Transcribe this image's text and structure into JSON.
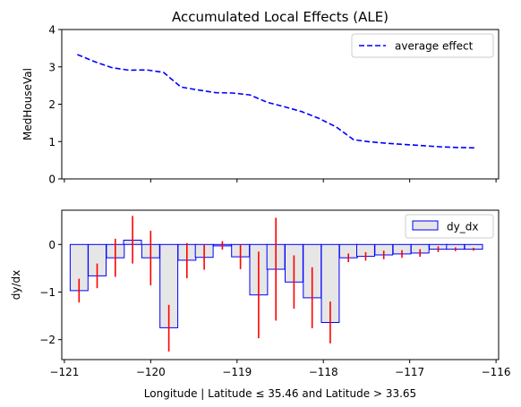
{
  "chart_data": [
    {
      "type": "line",
      "title": "Accumulated Local Effects (ALE)",
      "xlabel": "",
      "ylabel": "MedHouseVal",
      "xlim": [
        -121.03,
        -115.97
      ],
      "ylim": [
        0,
        4
      ],
      "yticks": [
        0,
        1,
        2,
        3,
        4
      ],
      "legend": {
        "position": "top-right",
        "entries": [
          "average effect"
        ]
      },
      "series": [
        {
          "name": "average effect",
          "color": "#0000ff",
          "linestyle": "dashed",
          "x": [
            -120.85,
            -120.65,
            -120.45,
            -120.25,
            -120.05,
            -119.85,
            -119.65,
            -119.45,
            -119.25,
            -119.05,
            -118.85,
            -118.65,
            -118.45,
            -118.25,
            -118.05,
            -117.85,
            -117.65,
            -117.45,
            -117.25,
            -117.05,
            -116.85,
            -116.65,
            -116.45,
            -116.25
          ],
          "y": [
            3.33,
            3.14,
            2.98,
            2.91,
            2.92,
            2.85,
            2.46,
            2.38,
            2.31,
            2.3,
            2.25,
            2.05,
            1.93,
            1.8,
            1.62,
            1.39,
            1.05,
            0.99,
            0.95,
            0.92,
            0.89,
            0.86,
            0.84,
            0.83
          ]
        }
      ]
    },
    {
      "type": "bar",
      "title": "",
      "xlabel": "Longitude | Latitude ≤ 35.46 and Latitude > 33.65",
      "ylabel": "dy/dx",
      "xlim": [
        -121.03,
        -115.97
      ],
      "ylim": [
        -2.42,
        0.72
      ],
      "yticks": [
        0,
        -1,
        -2
      ],
      "xticks": [
        -121,
        -120,
        -119,
        -118,
        -117,
        -116
      ],
      "xtick_labels": [
        "−121",
        "−120",
        "−119",
        "−118",
        "−117",
        "−116"
      ],
      "ytick_labels": [
        "0",
        "−1",
        "−2"
      ],
      "legend": {
        "position": "top-right",
        "entries": [
          "dy_dx"
        ]
      },
      "bar_fill": "#e6e6e6",
      "bar_edge": "#0000ff",
      "error_color": "#ff0000",
      "series": [
        {
          "name": "dy_dx",
          "x": [
            -120.83,
            -120.62,
            -120.41,
            -120.21,
            -120.0,
            -119.79,
            -119.58,
            -119.38,
            -119.17,
            -118.96,
            -118.75,
            -118.55,
            -118.34,
            -118.13,
            -117.92,
            -117.71,
            -117.51,
            -117.3,
            -117.09,
            -116.88,
            -116.67,
            -116.47,
            -116.26
          ],
          "values": [
            -0.97,
            -0.66,
            -0.28,
            0.09,
            -0.28,
            -1.75,
            -0.33,
            -0.27,
            -0.03,
            -0.26,
            -1.06,
            -0.52,
            -0.79,
            -1.12,
            -1.64,
            -0.28,
            -0.25,
            -0.22,
            -0.2,
            -0.18,
            -0.1,
            -0.1,
            -0.1
          ],
          "err_low": [
            -1.22,
            -0.92,
            -0.68,
            -0.4,
            -0.86,
            -2.25,
            -0.71,
            -0.53,
            -0.11,
            -0.52,
            -1.97,
            -1.6,
            -1.35,
            -1.76,
            -2.08,
            -0.37,
            -0.34,
            -0.31,
            -0.28,
            -0.26,
            -0.16,
            -0.14,
            -0.13
          ],
          "err_high": [
            -0.72,
            -0.4,
            0.12,
            0.6,
            0.29,
            -1.27,
            0.03,
            0.0,
            0.07,
            0.0,
            -0.15,
            0.56,
            -0.23,
            -0.48,
            -1.2,
            -0.19,
            -0.16,
            -0.13,
            -0.12,
            -0.1,
            -0.04,
            -0.06,
            -0.07
          ],
          "bar_width": 0.206
        }
      ]
    }
  ]
}
